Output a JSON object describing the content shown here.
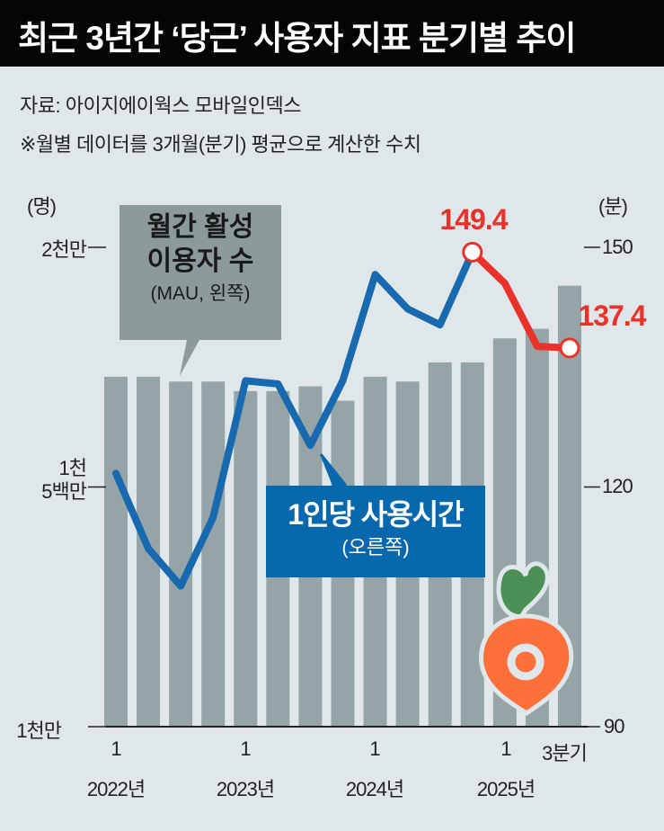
{
  "header": {
    "title": "최근 3년간 ‘당근’ 사용자 지표 분기별 추이",
    "source": "자료: 아이지에이웍스 모바일인덱스",
    "note": "※월별 데이터를 3개월(분기) 평균으로 계산한 수치"
  },
  "legend": {
    "mau_line1": "월간 활성",
    "mau_line2": "이용자 수",
    "mau_sub": "(MAU, 왼쪽)",
    "time_line1": "1인당 사용시간",
    "time_sub": "(오른쪽)"
  },
  "colors": {
    "bar": "#95a4a6",
    "line": "#1769b0",
    "highlight": "#e8322a",
    "callout_bar": "#8d9a9c",
    "callout_line": "#0768ae"
  },
  "chart_data": {
    "type": "bar+line",
    "title": "최근 3년간 ‘당근’ 사용자 지표 분기별 추이",
    "categories": [
      "2022Q1",
      "2022Q2",
      "2022Q3",
      "2022Q4",
      "2023Q1",
      "2023Q2",
      "2023Q3",
      "2023Q4",
      "2024Q1",
      "2024Q2",
      "2024Q3",
      "2024Q4",
      "2025Q1",
      "2025Q2",
      "2025Q3"
    ],
    "series": [
      {
        "name": "월간 활성 이용자 수 (MAU, 왼쪽)",
        "type": "bar",
        "axis": "left",
        "unit": "명(백만)",
        "values": [
          17.3,
          17.3,
          17.2,
          17.2,
          17.0,
          17.0,
          17.1,
          16.8,
          17.3,
          17.2,
          17.6,
          17.6,
          18.1,
          18.3,
          19.2
        ]
      },
      {
        "name": "1인당 사용시간 (오른쪽)",
        "type": "line",
        "axis": "right",
        "unit": "분",
        "values": [
          121.7,
          112.3,
          107.6,
          116.2,
          133.3,
          132.9,
          125.2,
          133.3,
          146.6,
          142.3,
          140.3,
          149.4,
          145.5,
          137.6,
          137.4
        ],
        "highlight_from_index": 11
      }
    ],
    "data_labels": [
      {
        "index": 11,
        "text": "149.4"
      },
      {
        "index": 14,
        "text": "137.4"
      }
    ],
    "left_axis": {
      "unit_label": "(명)",
      "ylim": [
        10,
        20
      ],
      "ticks": [
        {
          "value": 20,
          "label": "2천만"
        },
        {
          "value": 15,
          "label1": "1천",
          "label2": "5백만"
        },
        {
          "value": 10,
          "label": "1천만"
        }
      ]
    },
    "right_axis": {
      "unit_label": "(분)",
      "ylim": [
        90,
        150
      ],
      "ticks": [
        {
          "value": 150,
          "label": "150"
        },
        {
          "value": 120,
          "label": "120"
        },
        {
          "value": 90,
          "label": "90"
        }
      ]
    },
    "x_ticks": [
      {
        "index": 0,
        "quarter": "1",
        "year": "2022년"
      },
      {
        "index": 4,
        "quarter": "1",
        "year": "2023년"
      },
      {
        "index": 8,
        "quarter": "1",
        "year": "2024년"
      },
      {
        "index": 12,
        "quarter": "1",
        "year": "2025년"
      },
      {
        "index": 14,
        "quarter": "3분기"
      }
    ]
  }
}
